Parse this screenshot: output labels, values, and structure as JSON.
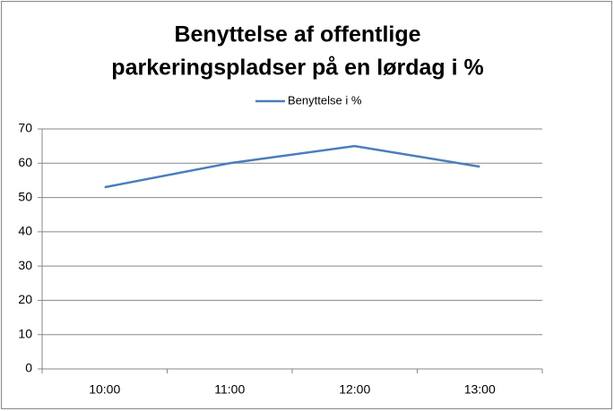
{
  "chart_data": {
    "type": "line",
    "title": [
      "Benyttelse af offentlige",
      "parkeringspladser på en lørdag i %"
    ],
    "categories": [
      "10:00",
      "11:00",
      "12:00",
      "13:00"
    ],
    "series": [
      {
        "name": "Benyttelse i %",
        "color": "#4a7ebb",
        "values": [
          53,
          60,
          65,
          59
        ]
      }
    ],
    "ylim": [
      0,
      70
    ],
    "yticks": [
      0,
      10,
      20,
      30,
      40,
      50,
      60,
      70
    ],
    "grid": true,
    "legend": "top"
  }
}
